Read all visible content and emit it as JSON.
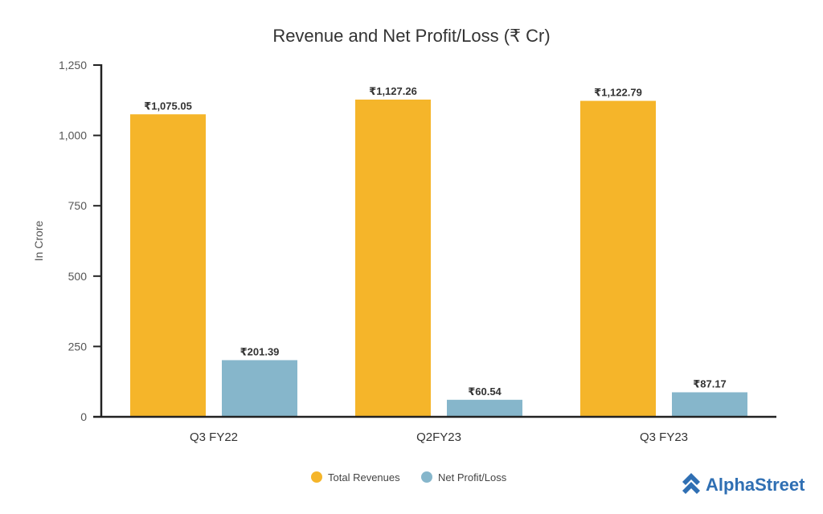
{
  "chart_data": {
    "type": "bar",
    "title": "Revenue and Net Profit/Loss (₹ Cr)",
    "xlabel": "",
    "ylabel": "In Crore",
    "ylim": [
      0,
      1250
    ],
    "yticks": [
      0,
      250,
      500,
      750,
      1000,
      1250
    ],
    "ytick_labels": [
      "0",
      "250",
      "500",
      "750",
      "1,000",
      "1,250"
    ],
    "categories": [
      "Q3 FY22",
      "Q2FY23",
      "Q3 FY23"
    ],
    "series": [
      {
        "name": "Total Revenues",
        "color": "#f5b52a",
        "values": [
          1075.05,
          1127.26,
          1122.79
        ],
        "labels": [
          "₹1,075.05",
          "₹1,127.26",
          "₹1,122.79"
        ]
      },
      {
        "name": "Net Profit/Loss",
        "color": "#86b6cb",
        "values": [
          201.39,
          60.54,
          87.17
        ],
        "labels": [
          "₹201.39",
          "₹60.54",
          "₹87.17"
        ]
      }
    ],
    "grid": false,
    "legend_position": "bottom-center"
  },
  "brand": {
    "logo_text": "AlphaStreet",
    "color": "#2f6fb3"
  }
}
